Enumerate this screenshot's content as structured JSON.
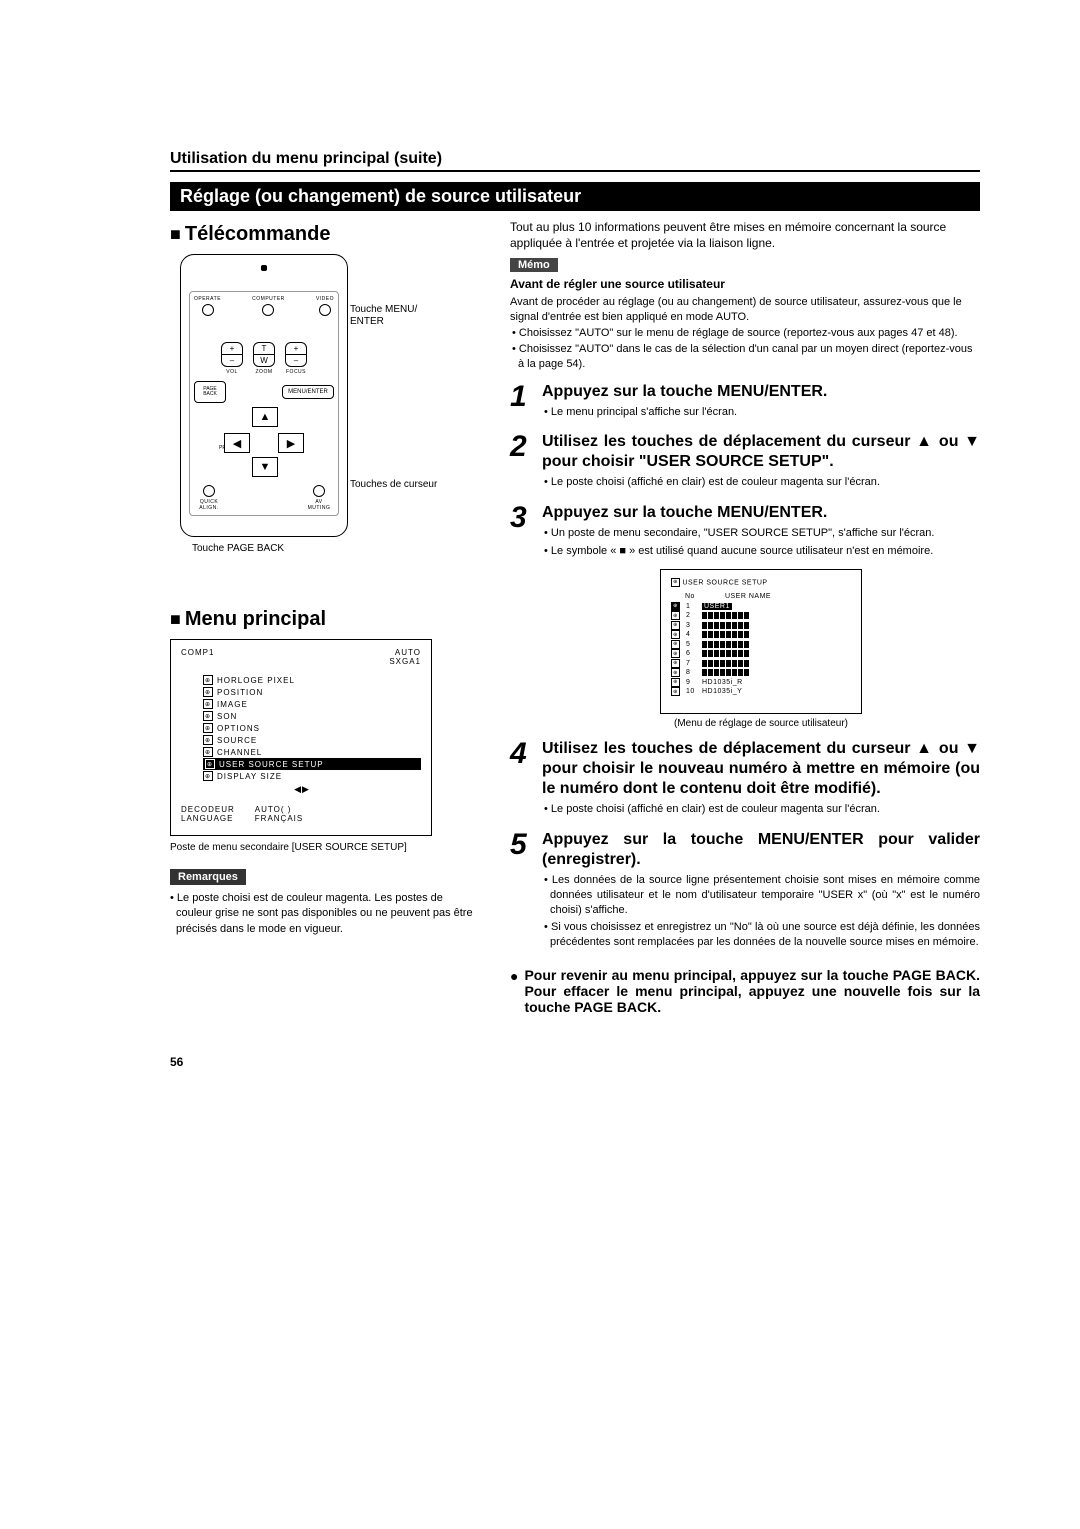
{
  "breadcrumb": "Utilisation du menu principal (suite)",
  "section_bar": "Réglage (ou changement) de source utilisateur",
  "left": {
    "telecommande": "Télécommande",
    "remote": {
      "top_labels": [
        "OPERATE",
        "COMPUTER",
        "VIDEO"
      ],
      "vol": "VOL",
      "zoom": "ZOOM",
      "focus": "FOCUS",
      "t": "T",
      "w": "W",
      "plus": "+",
      "minus": "–",
      "menu_enter": "MENU/ENTER",
      "page_back": "PAGE BACK",
      "preset": "PRESET",
      "quick_align": "QUICK ALIGN.",
      "av_muting": "AV MUTING"
    },
    "callout_menu": "Touche MENU/ ENTER",
    "callout_cursor": "Touches de curseur",
    "callout_pageback": "Touche PAGE BACK",
    "menu_principal_heading": "Menu principal",
    "menu": {
      "top_left": "COMP1",
      "top_right1": "AUTO",
      "top_right2": "SXGA1",
      "items": [
        "HORLOGE PIXEL",
        "POSITION",
        "IMAGE",
        "SON",
        "OPTIONS",
        "SOURCE",
        "CHANNEL",
        "USER SOURCE SETUP",
        "DISPLAY SIZE"
      ],
      "selected_index": 7,
      "footer_l": [
        "DECODEUR",
        "LANGUAGE"
      ],
      "footer_r": [
        "AUTO(                    )",
        "FRANÇAIS"
      ]
    },
    "menu_caption": "Poste de menu secondaire [USER SOURCE SETUP]",
    "remarques_label": "Remarques",
    "remarques_text": "• Le poste choisi est de couleur magenta. Les postes de couleur grise ne sont pas disponibles ou ne peuvent pas être précisés dans le mode en vigueur."
  },
  "right": {
    "intro": "Tout au plus 10 informations peuvent être mises en mémoire concernant la source appliquée à l'entrée et projetée via la liaison ligne.",
    "memo_label": "Mémo",
    "memo_title": "Avant de régler une source utilisateur",
    "memo_text": "Avant de procéder au réglage (ou au changement) de source utilisateur, assurez-vous que le signal d'entrée est bien appliqué en mode AUTO.",
    "memo_b1": "• Choisissez \"AUTO\" sur le menu de réglage de source (reportez-vous aux pages 47 et 48).",
    "memo_b2": "• Choisissez \"AUTO\" dans le cas de la sélection d'un canal par un moyen direct (reportez-vous à la page 54).",
    "step1_title": "Appuyez sur la touche MENU/ENTER.",
    "step1_b1": "• Le menu principal s'affiche sur l'écran.",
    "step2_title": "Utilisez les touches de déplacement du curseur ▲ ou ▼ pour choisir \"USER SOURCE SETUP\".",
    "step2_b1": "• Le poste choisi (affiché en clair) est de couleur magenta sur l'écran.",
    "step3_title": "Appuyez sur la touche MENU/ENTER.",
    "step3_b1": "• Un poste de menu secondaire, \"USER SOURCE SETUP\", s'affiche sur l'écran.",
    "step3_b2": "• Le symbole « ■ » est utilisé quand aucune source utilisateur n'est en mémoire.",
    "uss": {
      "title": "USER SOURCE SETUP",
      "col_no": "No",
      "col_name": "USER NAME",
      "user1": "USER1",
      "hd_r": "HD1035i_R",
      "hd_y": "HD1035i_Y"
    },
    "uss_caption": "(Menu de réglage de source utilisateur)",
    "step4_title": "Utilisez les touches de déplacement du curseur ▲ ou ▼ pour choisir le nouveau numéro à mettre en mémoire (ou le numéro dont le contenu doit être modifié).",
    "step4_b1": "• Le poste choisi (affiché en clair) est de couleur magenta sur l'écran.",
    "step5_title": "Appuyez sur la touche MENU/ENTER pour valider (enregistrer).",
    "step5_b1": "• Les données de la source ligne présentement choisie sont mises en mémoire comme données utilisateur et le nom d'utilisateur temporaire \"USER x\" (où \"x\" est le numéro choisi) s'affiche.",
    "step5_b2": "• Si vous choisissez et enregistrez un \"No\" là où une source est déjà définie, les données précédentes sont remplacées par les données de la nouvelle source mises en mémoire.",
    "closing": "Pour revenir au menu principal, appuyez sur la touche PAGE BACK. Pour effacer le menu principal, appuyez une nouvelle fois sur la touche PAGE BACK."
  },
  "page_number": "56"
}
